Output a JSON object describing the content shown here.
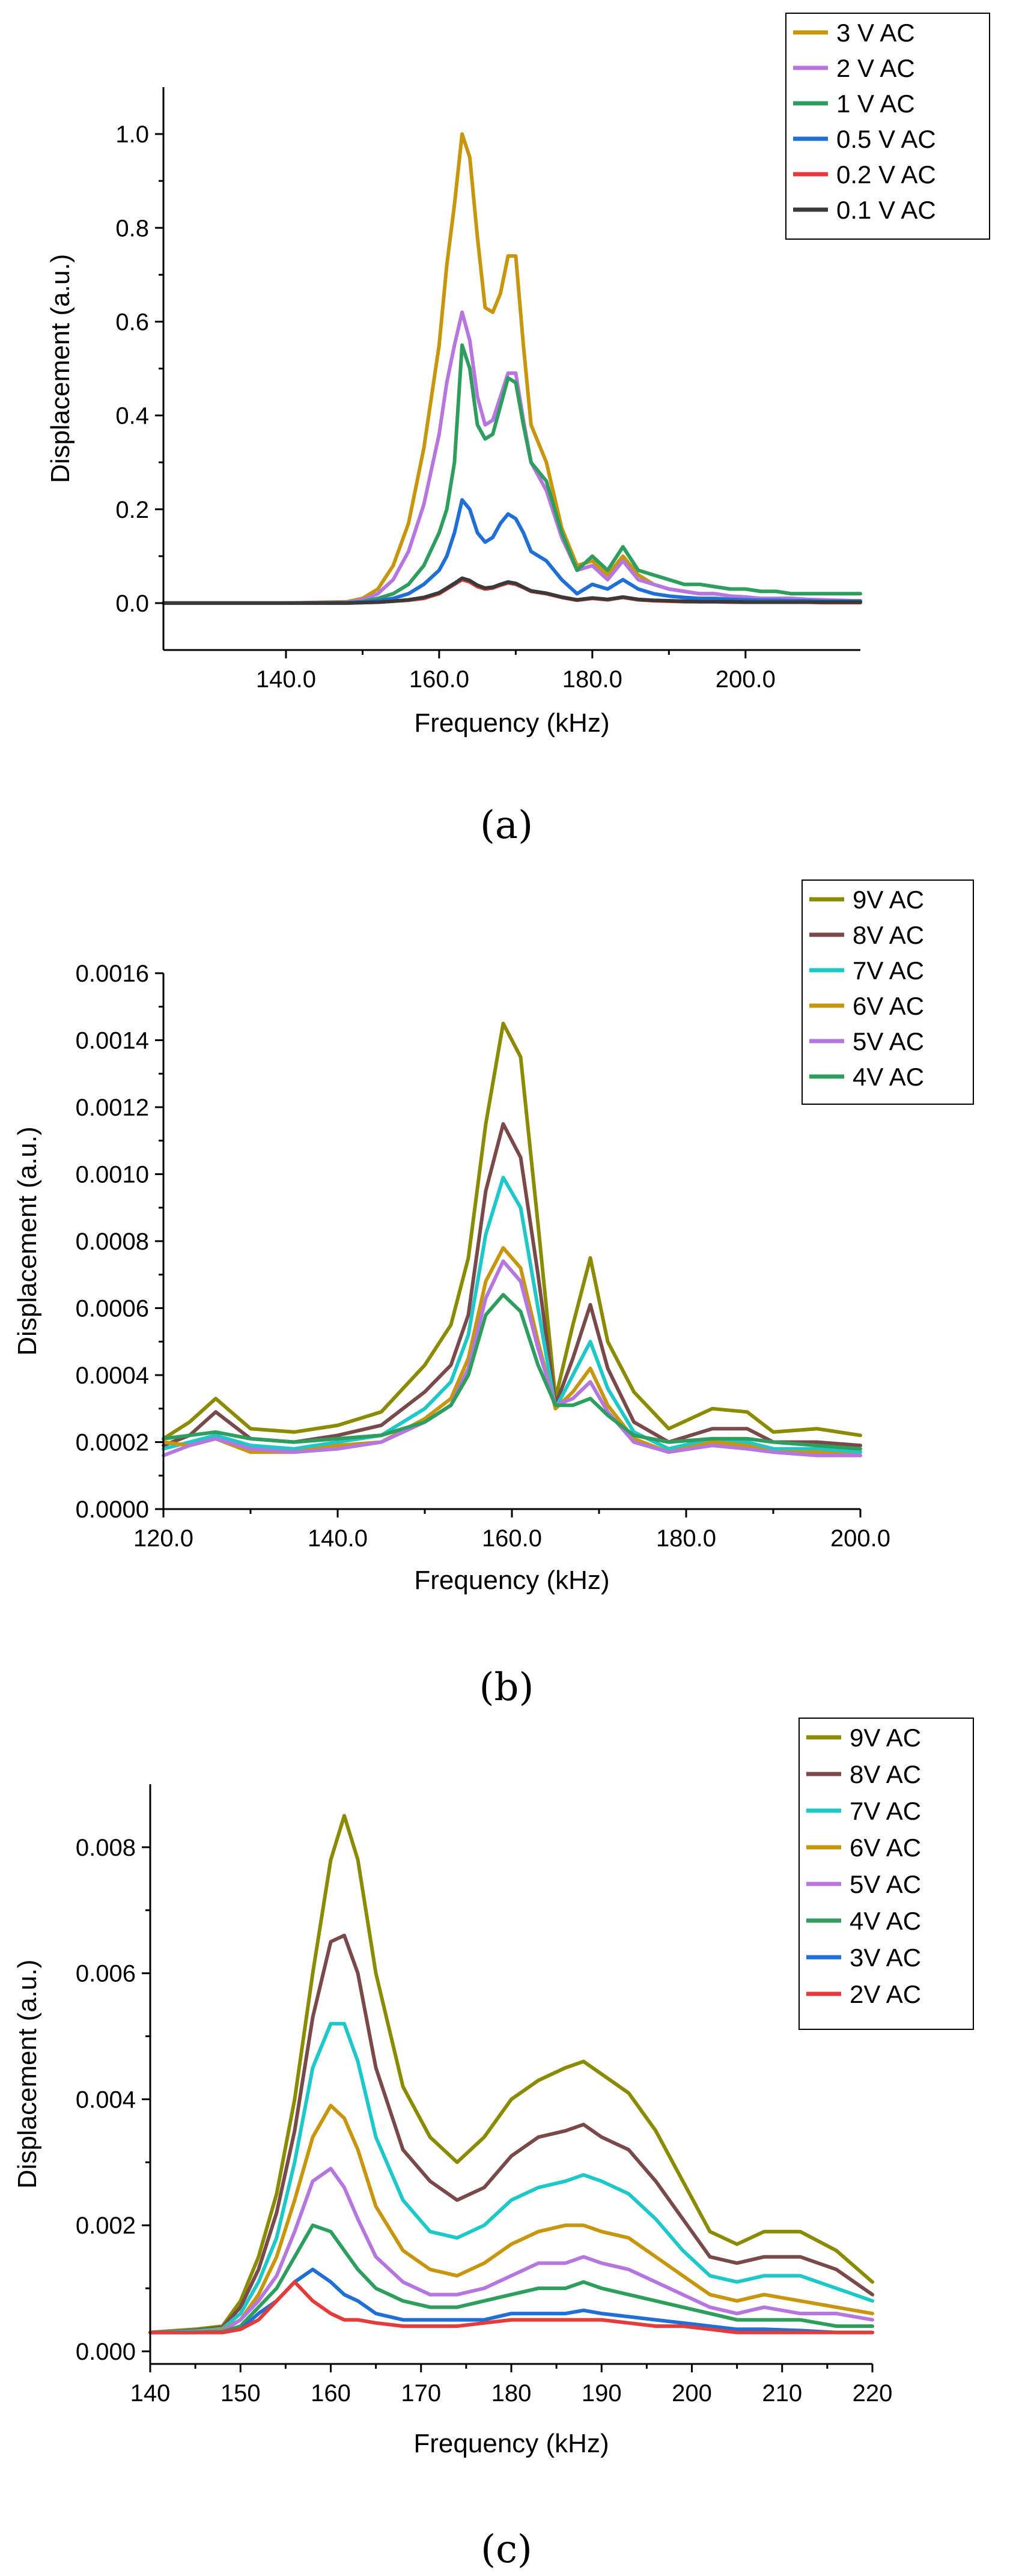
{
  "figure": {
    "panel_labels": [
      "(a)",
      "(b)",
      "(c)"
    ]
  },
  "chart_data": [
    {
      "type": "line",
      "panel": "(a)",
      "xlabel": "Frequency (kHz)",
      "ylabel": "Displacement (a.u.)",
      "xlim": [
        124,
        215
      ],
      "ylim": [
        -0.1,
        1.1
      ],
      "xticks": [
        140.0,
        160.0,
        180.0,
        200.0
      ],
      "xtick_labels": [
        "140.0",
        "160.0",
        "180.0",
        "200.0"
      ],
      "yticks": [
        0.0,
        0.2,
        0.4,
        0.6,
        0.8,
        1.0
      ],
      "ytick_labels": [
        "0.0",
        "0.2",
        "0.4",
        "0.6",
        "0.8",
        "1.0"
      ],
      "grid": false,
      "legend_position": "top-right",
      "x": [
        124,
        130,
        140,
        148,
        150,
        152,
        154,
        156,
        158,
        160,
        161,
        162,
        163,
        164,
        165,
        166,
        167,
        168,
        169,
        170,
        171,
        172,
        174,
        176,
        178,
        180,
        182,
        184,
        186,
        188,
        190,
        192,
        194,
        196,
        198,
        200,
        202,
        204,
        206,
        208,
        210,
        212,
        214,
        215
      ],
      "series": [
        {
          "name": "3 V AC",
          "color": "#c8960c",
          "values": [
            0,
            0,
            0,
            0.003,
            0.01,
            0.03,
            0.08,
            0.17,
            0.33,
            0.55,
            0.72,
            0.85,
            1.0,
            0.95,
            0.78,
            0.63,
            0.62,
            0.66,
            0.74,
            0.74,
            0.55,
            0.38,
            0.3,
            0.16,
            0.08,
            0.09,
            0.06,
            0.1,
            0.06,
            0.04,
            0.03,
            0.025,
            0.02,
            0.02,
            0.015,
            0.012,
            0.01,
            0.01,
            0.01,
            0.008,
            0.006,
            0.005,
            0.004,
            0.004
          ]
        },
        {
          "name": "2 V AC",
          "color": "#b576e0",
          "values": [
            0,
            0,
            0,
            0.002,
            0.007,
            0.02,
            0.05,
            0.11,
            0.21,
            0.36,
            0.47,
            0.55,
            0.62,
            0.56,
            0.44,
            0.38,
            0.39,
            0.44,
            0.49,
            0.49,
            0.39,
            0.3,
            0.24,
            0.14,
            0.07,
            0.08,
            0.05,
            0.09,
            0.05,
            0.04,
            0.03,
            0.025,
            0.02,
            0.02,
            0.015,
            0.013,
            0.01,
            0.01,
            0.01,
            0.008,
            0.007,
            0.006,
            0.005,
            0.005
          ]
        },
        {
          "name": "1 V AC",
          "color": "#2e9e5e",
          "values": [
            0,
            0,
            0,
            0.001,
            0.003,
            0.01,
            0.02,
            0.04,
            0.08,
            0.15,
            0.2,
            0.3,
            0.55,
            0.5,
            0.38,
            0.35,
            0.36,
            0.42,
            0.48,
            0.47,
            0.38,
            0.3,
            0.26,
            0.15,
            0.07,
            0.1,
            0.07,
            0.12,
            0.07,
            0.06,
            0.05,
            0.04,
            0.04,
            0.035,
            0.03,
            0.03,
            0.025,
            0.025,
            0.02,
            0.02,
            0.02,
            0.02,
            0.02,
            0.02
          ]
        },
        {
          "name": "0.5 V AC",
          "color": "#1f6fd6",
          "values": [
            0,
            0,
            0,
            0.001,
            0.002,
            0.005,
            0.01,
            0.02,
            0.04,
            0.07,
            0.1,
            0.15,
            0.22,
            0.2,
            0.15,
            0.13,
            0.14,
            0.17,
            0.19,
            0.18,
            0.15,
            0.11,
            0.09,
            0.05,
            0.02,
            0.04,
            0.03,
            0.05,
            0.03,
            0.02,
            0.015,
            0.012,
            0.01,
            0.01,
            0.008,
            0.007,
            0.006,
            0.006,
            0.005,
            0.005,
            0.004,
            0.004,
            0.004,
            0.004
          ]
        },
        {
          "name": "0.2 V AC",
          "color": "#e53b3b",
          "values": [
            0,
            0,
            0,
            0,
            0.001,
            0.002,
            0.004,
            0.006,
            0.01,
            0.02,
            0.03,
            0.04,
            0.05,
            0.045,
            0.035,
            0.03,
            0.032,
            0.038,
            0.043,
            0.04,
            0.033,
            0.025,
            0.02,
            0.012,
            0.006,
            0.01,
            0.007,
            0.012,
            0.007,
            0.005,
            0.004,
            0.003,
            0.003,
            0.003,
            0.002,
            0.002,
            0.002,
            0.002,
            0.002,
            0.002,
            0.001,
            0.001,
            0.001,
            0.001
          ]
        },
        {
          "name": "0.1 V AC",
          "color": "#3a3a3a",
          "values": [
            0,
            0,
            0,
            0,
            0.001,
            0.002,
            0.004,
            0.007,
            0.012,
            0.022,
            0.032,
            0.042,
            0.053,
            0.048,
            0.038,
            0.032,
            0.034,
            0.04,
            0.045,
            0.042,
            0.034,
            0.026,
            0.021,
            0.013,
            0.007,
            0.011,
            0.008,
            0.013,
            0.008,
            0.006,
            0.005,
            0.004,
            0.003,
            0.003,
            0.003,
            0.002,
            0.002,
            0.002,
            0.002,
            0.002,
            0.002,
            0.002,
            0.002,
            0.002
          ]
        }
      ]
    },
    {
      "type": "line",
      "panel": "(b)",
      "xlabel": "Frequency (kHz)",
      "ylabel": "Displacement (a.u.)",
      "xlim": [
        120,
        200
      ],
      "ylim": [
        0,
        0.0016
      ],
      "xticks": [
        120,
        140,
        160,
        180,
        200
      ],
      "xtick_labels": [
        "120.0",
        "140.0",
        "160.0",
        "180.0",
        "200.0"
      ],
      "yticks": [
        0,
        0.0002,
        0.0004,
        0.0006,
        0.0008,
        0.001,
        0.0012,
        0.0014,
        0.0016
      ],
      "ytick_labels": [
        "0.0000",
        "0.0002",
        "0.0004",
        "0.0006",
        "0.0008",
        "0.0010",
        "0.0012",
        "0.0014",
        "0.0016"
      ],
      "grid": false,
      "legend_position": "top-right",
      "x": [
        120,
        123,
        126,
        130,
        135,
        140,
        145,
        150,
        153,
        155,
        157,
        159,
        161,
        163,
        165,
        167,
        169,
        171,
        174,
        178,
        183,
        187,
        190,
        195,
        200
      ],
      "series": [
        {
          "name": "9V AC",
          "color": "#8b8b00",
          "values": [
            0.00021,
            0.00026,
            0.00033,
            0.00024,
            0.00023,
            0.00025,
            0.00029,
            0.00043,
            0.00055,
            0.00075,
            0.00115,
            0.00145,
            0.00135,
            0.00085,
            0.00033,
            0.00055,
            0.00075,
            0.0005,
            0.00035,
            0.00024,
            0.0003,
            0.00029,
            0.00023,
            0.00024,
            0.00022
          ]
        },
        {
          "name": "8V AC",
          "color": "#7a4a4a",
          "values": [
            0.00019,
            0.00022,
            0.00029,
            0.00021,
            0.0002,
            0.00022,
            0.00025,
            0.00035,
            0.00043,
            0.00058,
            0.00095,
            0.00115,
            0.00105,
            0.0007,
            0.00031,
            0.00045,
            0.00061,
            0.00042,
            0.00026,
            0.0002,
            0.00024,
            0.00024,
            0.0002,
            0.0002,
            0.00019
          ]
        },
        {
          "name": "7V AC",
          "color": "#1ec8c8",
          "values": [
            0.00018,
            0.0002,
            0.00022,
            0.00019,
            0.00018,
            0.0002,
            0.00022,
            0.0003,
            0.00038,
            0.00052,
            0.00082,
            0.00099,
            0.0009,
            0.0006,
            0.0003,
            0.0004,
            0.0005,
            0.00036,
            0.00023,
            0.00018,
            0.00021,
            0.0002,
            0.00018,
            0.00018,
            0.00017
          ]
        },
        {
          "name": "6V AC",
          "color": "#c8960c",
          "values": [
            0.0002,
            0.00019,
            0.00021,
            0.00017,
            0.00017,
            0.00019,
            0.0002,
            0.00027,
            0.00033,
            0.00045,
            0.00068,
            0.00078,
            0.00072,
            0.0005,
            0.0003,
            0.00035,
            0.00042,
            0.00031,
            0.00021,
            0.00017,
            0.0002,
            0.00019,
            0.00017,
            0.00017,
            0.00016
          ]
        },
        {
          "name": "5V AC",
          "color": "#b576e0",
          "values": [
            0.00016,
            0.00019,
            0.00021,
            0.00018,
            0.00017,
            0.00018,
            0.0002,
            0.00026,
            0.00031,
            0.00042,
            0.00063,
            0.00074,
            0.00068,
            0.00048,
            0.00031,
            0.00033,
            0.00038,
            0.00029,
            0.0002,
            0.00017,
            0.00019,
            0.00018,
            0.00017,
            0.00016,
            0.00016
          ]
        },
        {
          "name": "4V AC",
          "color": "#2e9e5e",
          "values": [
            0.00021,
            0.00022,
            0.00023,
            0.00021,
            0.0002,
            0.00021,
            0.00022,
            0.00026,
            0.00031,
            0.0004,
            0.00058,
            0.00064,
            0.00059,
            0.00043,
            0.00031,
            0.00031,
            0.00033,
            0.00028,
            0.00022,
            0.0002,
            0.00021,
            0.00021,
            0.0002,
            0.00019,
            0.00018
          ]
        }
      ]
    },
    {
      "type": "line",
      "panel": "(c)",
      "xlabel": "Frequency (kHz)",
      "ylabel": "Displacement (a.u.)",
      "xlim": [
        140,
        220
      ],
      "ylim": [
        -0.0002,
        0.009
      ],
      "xticks": [
        140,
        150,
        160,
        170,
        180,
        190,
        200,
        210,
        220
      ],
      "xtick_labels": [
        "140",
        "150",
        "160",
        "170",
        "180",
        "190",
        "200",
        "210",
        "220"
      ],
      "yticks": [
        0,
        0.002,
        0.004,
        0.006,
        0.008
      ],
      "ytick_labels": [
        "0.000",
        "0.002",
        "0.004",
        "0.006",
        "0.008"
      ],
      "grid": false,
      "legend_position": "top-right",
      "x": [
        140,
        145,
        148,
        150,
        152,
        154,
        156,
        158,
        160,
        161.5,
        163,
        165,
        168,
        171,
        174,
        177,
        180,
        183,
        186,
        188,
        190,
        193,
        196,
        199,
        202,
        205,
        208,
        212,
        216,
        220
      ],
      "series": [
        {
          "name": "9V AC",
          "color": "#8b8b00",
          "values": [
            0.0003,
            0.00035,
            0.0004,
            0.0008,
            0.0015,
            0.0025,
            0.004,
            0.006,
            0.0078,
            0.0085,
            0.0078,
            0.006,
            0.0042,
            0.0034,
            0.003,
            0.0034,
            0.004,
            0.0043,
            0.0045,
            0.0046,
            0.0044,
            0.0041,
            0.0035,
            0.0027,
            0.0019,
            0.0017,
            0.0019,
            0.0019,
            0.0016,
            0.0011
          ]
        },
        {
          "name": "8V AC",
          "color": "#7a4a4a",
          "values": [
            0.0003,
            0.00033,
            0.00038,
            0.0007,
            0.0013,
            0.0022,
            0.0035,
            0.0053,
            0.0065,
            0.0066,
            0.006,
            0.0045,
            0.0032,
            0.0027,
            0.0024,
            0.0026,
            0.0031,
            0.0034,
            0.0035,
            0.0036,
            0.0034,
            0.0032,
            0.0027,
            0.0021,
            0.0015,
            0.0014,
            0.0015,
            0.0015,
            0.0013,
            0.0009
          ]
        },
        {
          "name": "7V AC",
          "color": "#1ec8c8",
          "values": [
            0.0003,
            0.00032,
            0.00036,
            0.0006,
            0.0011,
            0.0018,
            0.003,
            0.0045,
            0.0052,
            0.0052,
            0.0046,
            0.0034,
            0.0024,
            0.0019,
            0.0018,
            0.002,
            0.0024,
            0.0026,
            0.0027,
            0.0028,
            0.0027,
            0.0025,
            0.0021,
            0.0016,
            0.0012,
            0.0011,
            0.0012,
            0.0012,
            0.001,
            0.0008
          ]
        },
        {
          "name": "6V AC",
          "color": "#c8960c",
          "values": [
            0.0003,
            0.0003,
            0.00034,
            0.0005,
            0.0009,
            0.0015,
            0.0024,
            0.0034,
            0.0039,
            0.0037,
            0.0032,
            0.0023,
            0.0016,
            0.0013,
            0.0012,
            0.0014,
            0.0017,
            0.0019,
            0.002,
            0.002,
            0.0019,
            0.0018,
            0.0015,
            0.0012,
            0.0009,
            0.0008,
            0.0009,
            0.0008,
            0.0007,
            0.0006
          ]
        },
        {
          "name": "5V AC",
          "color": "#b576e0",
          "values": [
            0.0003,
            0.0003,
            0.00032,
            0.0005,
            0.0008,
            0.0012,
            0.0019,
            0.0027,
            0.0029,
            0.0026,
            0.0021,
            0.0015,
            0.0011,
            0.0009,
            0.0009,
            0.001,
            0.0012,
            0.0014,
            0.0014,
            0.0015,
            0.0014,
            0.0013,
            0.0011,
            0.0009,
            0.0007,
            0.0006,
            0.0007,
            0.0006,
            0.0006,
            0.0005
          ]
        },
        {
          "name": "4V AC",
          "color": "#2e9e5e",
          "values": [
            0.0003,
            0.0003,
            0.00031,
            0.0004,
            0.0007,
            0.001,
            0.0015,
            0.002,
            0.0019,
            0.0016,
            0.0013,
            0.001,
            0.0008,
            0.0007,
            0.0007,
            0.0008,
            0.0009,
            0.001,
            0.001,
            0.0011,
            0.001,
            0.0009,
            0.0008,
            0.0007,
            0.0006,
            0.0005,
            0.0005,
            0.0005,
            0.0004,
            0.0004
          ]
        },
        {
          "name": "3V AC",
          "color": "#1f6fd6",
          "values": [
            0.0003,
            0.0003,
            0.0003,
            0.00035,
            0.0006,
            0.0008,
            0.0011,
            0.0013,
            0.0011,
            0.0009,
            0.0008,
            0.0006,
            0.0005,
            0.0005,
            0.0005,
            0.0005,
            0.0006,
            0.0006,
            0.0006,
            0.00065,
            0.0006,
            0.00055,
            0.0005,
            0.00045,
            0.0004,
            0.00035,
            0.00035,
            0.00033,
            0.0003,
            0.0003
          ]
        },
        {
          "name": "2V AC",
          "color": "#e53b3b",
          "values": [
            0.0003,
            0.0003,
            0.0003,
            0.00035,
            0.0005,
            0.0008,
            0.0011,
            0.0008,
            0.0006,
            0.0005,
            0.0005,
            0.00045,
            0.0004,
            0.0004,
            0.0004,
            0.00045,
            0.0005,
            0.0005,
            0.0005,
            0.0005,
            0.0005,
            0.00045,
            0.0004,
            0.0004,
            0.00035,
            0.0003,
            0.0003,
            0.0003,
            0.0003,
            0.0003
          ]
        }
      ]
    }
  ]
}
